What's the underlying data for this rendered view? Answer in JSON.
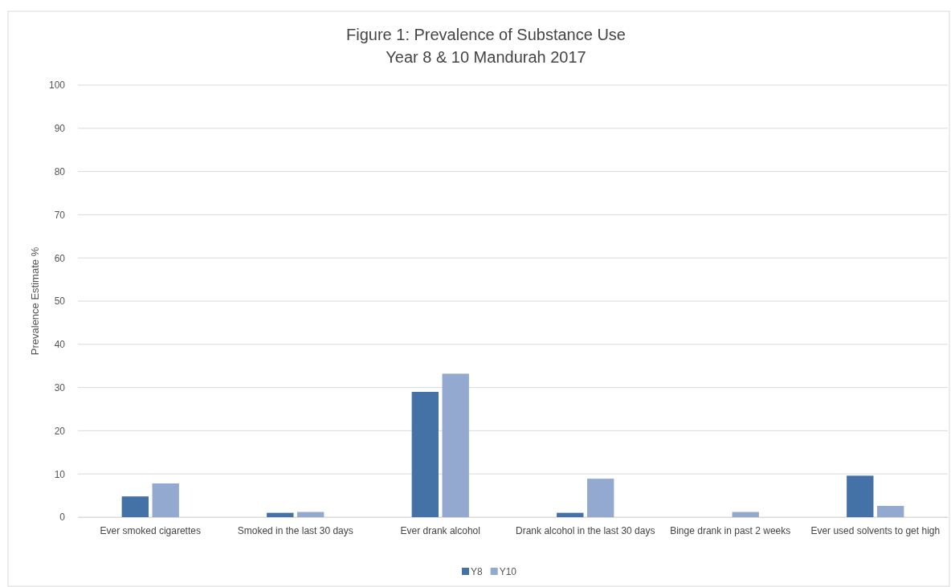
{
  "chart_data": {
    "type": "bar",
    "title": "Figure 1: Prevalence of Substance Use",
    "subtitle": "Year 8 & 10 Mandurah 2017",
    "ylabel": "Prevalence Estimate %",
    "categories": [
      "Ever smoked cigarettes",
      "Smoked in the last 30 days",
      "Ever drank alcohol",
      "Drank alcohol in the last 30 days",
      "Binge drank in past 2 weeks",
      "Ever used solvents to get high"
    ],
    "series": [
      {
        "name": "Y8",
        "color": "#4472a6",
        "values": [
          4.8,
          1.0,
          29.0,
          1.0,
          0,
          9.6
        ]
      },
      {
        "name": "Y10",
        "color": "#94a9d0",
        "values": [
          7.8,
          1.2,
          33.2,
          8.9,
          1.2,
          2.6
        ]
      }
    ],
    "ylim": [
      0,
      100
    ],
    "yticks": [
      0,
      10,
      20,
      30,
      40,
      50,
      60,
      70,
      80,
      90,
      100
    ],
    "grid": "y",
    "legend": "bottom"
  }
}
